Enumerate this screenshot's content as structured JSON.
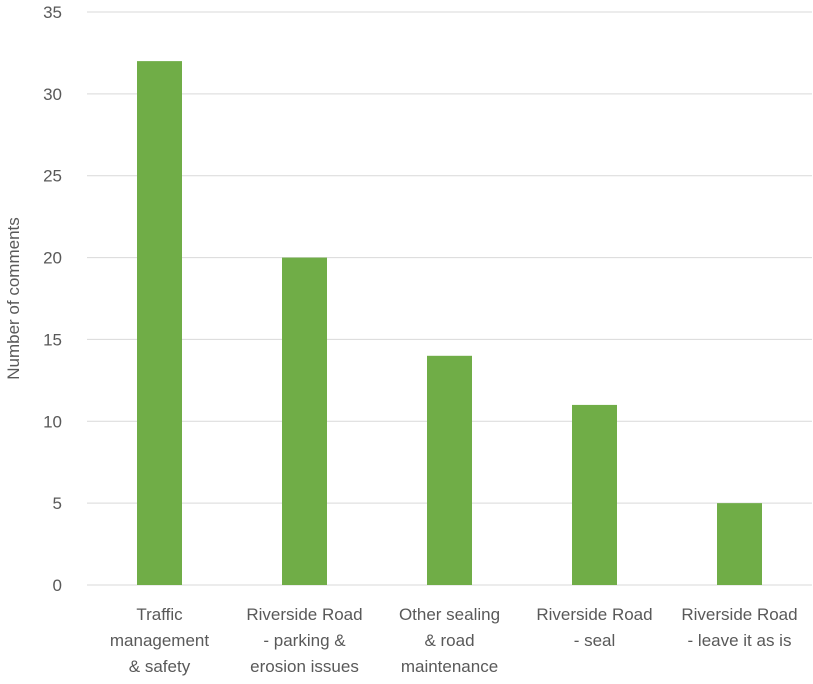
{
  "chart_data": {
    "type": "bar",
    "title": "",
    "xlabel": "",
    "ylabel": "Number of comments",
    "ylim": [
      0,
      35
    ],
    "yticks": [
      0,
      5,
      10,
      15,
      20,
      25,
      30,
      35
    ],
    "grid": true,
    "legend": "none",
    "bar_color": "#70ad47",
    "categories": [
      [
        "Traffic",
        "management",
        "& safety"
      ],
      [
        "Riverside Road",
        "- parking &",
        "erosion issues"
      ],
      [
        "Other sealing",
        "& road",
        "maintenance"
      ],
      [
        "Riverside Road",
        "- seal"
      ],
      [
        "Riverside Road",
        "- leave it as is"
      ]
    ],
    "values": [
      32,
      20,
      14,
      11,
      5
    ]
  }
}
